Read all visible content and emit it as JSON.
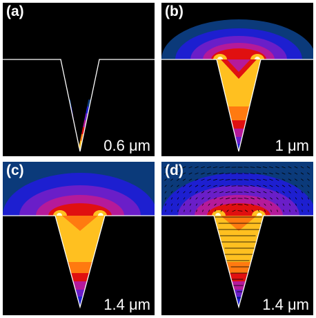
{
  "panels": [
    {
      "label": "(a)",
      "scale": "0.6 μm"
    },
    {
      "label": "(b)",
      "scale": "1 μm"
    },
    {
      "label": "(c)",
      "scale": "1.4 μm"
    },
    {
      "label": "(d)",
      "scale": "1.4 μm"
    }
  ],
  "colors": {
    "background": "#000000",
    "substrate_line": "#ffffff",
    "dark_blue": "#0b3a7a",
    "blue": "#1d1fd0",
    "violet": "#6a1ec8",
    "magenta": "#b51a9a",
    "red": "#e01010",
    "orange": "#ff7a10",
    "yellow": "#ffc020",
    "white_hot": "#ffffe0"
  }
}
